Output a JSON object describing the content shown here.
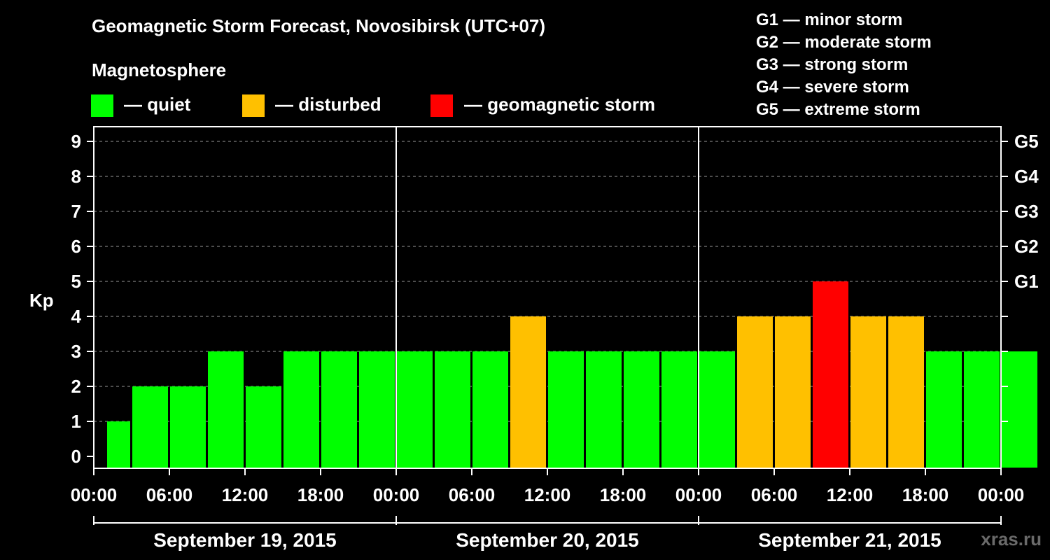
{
  "header": {
    "title": "Geomagnetic Storm Forecast, Novosibirsk (UTC+07)",
    "magnetosphere_label": "Magnetosphere"
  },
  "legend": [
    {
      "label": "— quiet",
      "color": "#00ff00"
    },
    {
      "label": "— disturbed",
      "color": "#ffc000"
    },
    {
      "label": "— geomagnetic storm",
      "color": "#ff0000"
    }
  ],
  "g_scale": [
    "G1 — minor storm",
    "G2 — moderate storm",
    "G3 — strong storm",
    "G4 — severe storm",
    "G5 — extreme storm"
  ],
  "watermark": "xras.ru",
  "chart_data": {
    "type": "bar",
    "ylabel": "Kp",
    "ylim": [
      0,
      9
    ],
    "yticks": [
      0,
      1,
      2,
      3,
      4,
      5,
      6,
      7,
      8,
      9
    ],
    "right_ticks": [
      {
        "value": 5,
        "label": "G1"
      },
      {
        "value": 6,
        "label": "G2"
      },
      {
        "value": 7,
        "label": "G3"
      },
      {
        "value": 8,
        "label": "G4"
      },
      {
        "value": 9,
        "label": "G5"
      }
    ],
    "xtick_labels": [
      "00:00",
      "06:00",
      "12:00",
      "18:00",
      "00:00",
      "06:00",
      "12:00",
      "18:00",
      "00:00",
      "06:00",
      "12:00",
      "18:00",
      "00:00"
    ],
    "days": [
      "September 19, 2015",
      "September 20, 2015",
      "September 21, 2015"
    ],
    "bars": [
      {
        "start": 1,
        "end": 3,
        "kp": 1,
        "level": "quiet"
      },
      {
        "start": 3,
        "end": 6,
        "kp": 2,
        "level": "quiet"
      },
      {
        "start": 6,
        "end": 9,
        "kp": 2,
        "level": "quiet"
      },
      {
        "start": 9,
        "end": 12,
        "kp": 3,
        "level": "quiet"
      },
      {
        "start": 12,
        "end": 15,
        "kp": 2,
        "level": "quiet"
      },
      {
        "start": 15,
        "end": 18,
        "kp": 3,
        "level": "quiet"
      },
      {
        "start": 18,
        "end": 21,
        "kp": 3,
        "level": "quiet"
      },
      {
        "start": 21,
        "end": 24,
        "kp": 3,
        "level": "quiet"
      },
      {
        "start": 24,
        "end": 27,
        "kp": 3,
        "level": "quiet"
      },
      {
        "start": 27,
        "end": 30,
        "kp": 3,
        "level": "quiet"
      },
      {
        "start": 30,
        "end": 33,
        "kp": 3,
        "level": "quiet"
      },
      {
        "start": 33,
        "end": 36,
        "kp": 4,
        "level": "disturbed"
      },
      {
        "start": 36,
        "end": 39,
        "kp": 3,
        "level": "quiet"
      },
      {
        "start": 39,
        "end": 42,
        "kp": 3,
        "level": "quiet"
      },
      {
        "start": 42,
        "end": 45,
        "kp": 3,
        "level": "quiet"
      },
      {
        "start": 45,
        "end": 48,
        "kp": 3,
        "level": "quiet"
      },
      {
        "start": 48,
        "end": 51,
        "kp": 3,
        "level": "quiet"
      },
      {
        "start": 51,
        "end": 54,
        "kp": 4,
        "level": "disturbed"
      },
      {
        "start": 54,
        "end": 57,
        "kp": 4,
        "level": "disturbed"
      },
      {
        "start": 57,
        "end": 60,
        "kp": 5,
        "level": "storm"
      },
      {
        "start": 60,
        "end": 63,
        "kp": 4,
        "level": "disturbed"
      },
      {
        "start": 63,
        "end": 66,
        "kp": 4,
        "level": "disturbed"
      },
      {
        "start": 66,
        "end": 69,
        "kp": 3,
        "level": "quiet"
      },
      {
        "start": 69,
        "end": 72,
        "kp": 3,
        "level": "quiet"
      },
      {
        "start": 72,
        "end": 75,
        "kp": 3,
        "level": "quiet"
      }
    ],
    "colors": {
      "quiet": "#00ff00",
      "disturbed": "#ffc000",
      "storm": "#ff0000"
    }
  }
}
